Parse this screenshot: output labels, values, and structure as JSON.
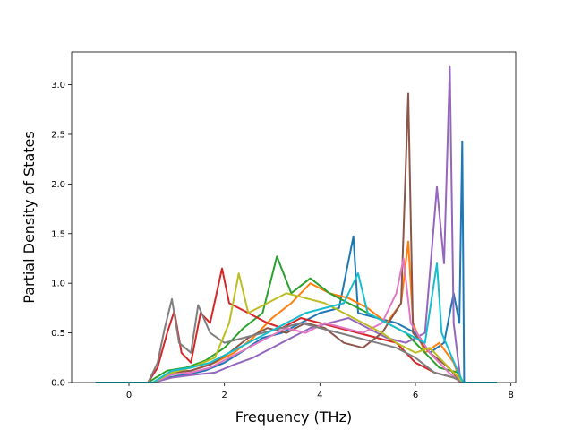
{
  "chart_data": {
    "type": "line",
    "title": "",
    "xlabel": "Frequency (THz)",
    "ylabel": "Partial Density of States",
    "xlim": [
      -1.2,
      8.1
    ],
    "ylim": [
      0.0,
      3.33
    ],
    "x_ticks": [
      0,
      2,
      4,
      6,
      8
    ],
    "x_tick_labels": [
      "0",
      "2",
      "4",
      "6",
      "8"
    ],
    "y_ticks": [
      0.0,
      0.5,
      1.0,
      1.5,
      2.0,
      2.5,
      3.0
    ],
    "y_tick_labels": [
      "0.0",
      "0.5",
      "1.0",
      "1.5",
      "2.0",
      "2.5",
      "3.0"
    ],
    "grid": false,
    "legend": "none",
    "series": [
      {
        "color": "#1f77b4",
        "points": [
          [
            -0.7,
            0
          ],
          [
            0.5,
            0
          ],
          [
            0.8,
            0.05
          ],
          [
            1.2,
            0.08
          ],
          [
            1.6,
            0.12
          ],
          [
            2.0,
            0.2
          ],
          [
            2.4,
            0.32
          ],
          [
            2.8,
            0.45
          ],
          [
            3.2,
            0.5
          ],
          [
            3.6,
            0.6
          ],
          [
            4.0,
            0.7
          ],
          [
            4.4,
            0.75
          ],
          [
            4.7,
            1.47
          ],
          [
            4.8,
            0.7
          ],
          [
            5.2,
            0.65
          ],
          [
            5.6,
            0.6
          ],
          [
            6.0,
            0.5
          ],
          [
            6.3,
            0.3
          ],
          [
            6.6,
            0.4
          ],
          [
            6.8,
            0.9
          ],
          [
            6.92,
            0.6
          ],
          [
            6.98,
            2.43
          ],
          [
            7.02,
            0.0
          ],
          [
            7.7,
            0
          ]
        ]
      },
      {
        "color": "#ff7f0e",
        "points": [
          [
            -0.7,
            0
          ],
          [
            0.5,
            0
          ],
          [
            0.9,
            0.1
          ],
          [
            1.3,
            0.12
          ],
          [
            1.8,
            0.2
          ],
          [
            2.2,
            0.3
          ],
          [
            2.6,
            0.45
          ],
          [
            3.0,
            0.65
          ],
          [
            3.4,
            0.8
          ],
          [
            3.8,
            1.0
          ],
          [
            4.2,
            0.9
          ],
          [
            4.6,
            0.85
          ],
          [
            5.0,
            0.75
          ],
          [
            5.4,
            0.6
          ],
          [
            5.7,
            0.8
          ],
          [
            5.85,
            1.42
          ],
          [
            5.95,
            0.6
          ],
          [
            6.2,
            0.3
          ],
          [
            6.5,
            0.4
          ],
          [
            6.8,
            0.2
          ],
          [
            6.95,
            0.0
          ],
          [
            7.7,
            0
          ]
        ]
      },
      {
        "color": "#2ca02c",
        "points": [
          [
            -0.7,
            0
          ],
          [
            0.4,
            0
          ],
          [
            0.8,
            0.12
          ],
          [
            1.2,
            0.15
          ],
          [
            1.6,
            0.22
          ],
          [
            2.0,
            0.35
          ],
          [
            2.4,
            0.55
          ],
          [
            2.8,
            0.7
          ],
          [
            3.1,
            1.27
          ],
          [
            3.4,
            0.9
          ],
          [
            3.8,
            1.05
          ],
          [
            4.2,
            0.9
          ],
          [
            4.6,
            0.8
          ],
          [
            5.0,
            0.7
          ],
          [
            5.4,
            0.6
          ],
          [
            5.8,
            0.5
          ],
          [
            6.2,
            0.3
          ],
          [
            6.5,
            0.15
          ],
          [
            6.9,
            0.1
          ],
          [
            7.0,
            0.0
          ],
          [
            7.7,
            0
          ]
        ]
      },
      {
        "color": "#d62728",
        "points": [
          [
            -0.7,
            0
          ],
          [
            0.4,
            0
          ],
          [
            0.6,
            0.15
          ],
          [
            0.8,
            0.5
          ],
          [
            0.95,
            0.72
          ],
          [
            1.1,
            0.3
          ],
          [
            1.3,
            0.2
          ],
          [
            1.5,
            0.7
          ],
          [
            1.7,
            0.6
          ],
          [
            1.95,
            1.15
          ],
          [
            2.1,
            0.8
          ],
          [
            2.5,
            0.7
          ],
          [
            2.9,
            0.6
          ],
          [
            3.2,
            0.55
          ],
          [
            3.6,
            0.65
          ],
          [
            4.0,
            0.6
          ],
          [
            4.4,
            0.55
          ],
          [
            4.8,
            0.5
          ],
          [
            5.2,
            0.45
          ],
          [
            5.6,
            0.4
          ],
          [
            6.0,
            0.2
          ],
          [
            6.4,
            0.1
          ],
          [
            6.8,
            0.05
          ],
          [
            7.0,
            0.0
          ],
          [
            7.7,
            0
          ]
        ]
      },
      {
        "color": "#9467bd",
        "points": [
          [
            -0.7,
            0
          ],
          [
            0.5,
            0
          ],
          [
            0.9,
            0.05
          ],
          [
            1.4,
            0.08
          ],
          [
            1.8,
            0.1
          ],
          [
            2.2,
            0.18
          ],
          [
            2.6,
            0.25
          ],
          [
            3.0,
            0.35
          ],
          [
            3.4,
            0.45
          ],
          [
            3.8,
            0.55
          ],
          [
            4.2,
            0.6
          ],
          [
            4.6,
            0.65
          ],
          [
            5.0,
            0.55
          ],
          [
            5.4,
            0.45
          ],
          [
            5.8,
            0.4
          ],
          [
            6.2,
            0.5
          ],
          [
            6.45,
            1.97
          ],
          [
            6.6,
            1.2
          ],
          [
            6.72,
            3.18
          ],
          [
            6.8,
            0.6
          ],
          [
            6.95,
            0.0
          ],
          [
            7.7,
            0
          ]
        ]
      },
      {
        "color": "#8c564b",
        "points": [
          [
            -0.7,
            0
          ],
          [
            0.5,
            0
          ],
          [
            0.9,
            0.1
          ],
          [
            1.3,
            0.12
          ],
          [
            1.7,
            0.18
          ],
          [
            2.1,
            0.3
          ],
          [
            2.5,
            0.45
          ],
          [
            2.9,
            0.55
          ],
          [
            3.3,
            0.5
          ],
          [
            3.7,
            0.6
          ],
          [
            4.1,
            0.55
          ],
          [
            4.5,
            0.4
          ],
          [
            4.9,
            0.35
          ],
          [
            5.3,
            0.5
          ],
          [
            5.7,
            0.8
          ],
          [
            5.85,
            2.91
          ],
          [
            5.95,
            0.5
          ],
          [
            6.3,
            0.3
          ],
          [
            6.7,
            0.15
          ],
          [
            6.95,
            0.0
          ],
          [
            7.7,
            0
          ]
        ]
      },
      {
        "color": "#e377c2",
        "points": [
          [
            -0.7,
            0
          ],
          [
            0.5,
            0
          ],
          [
            0.9,
            0.08
          ],
          [
            1.3,
            0.1
          ],
          [
            1.7,
            0.15
          ],
          [
            2.1,
            0.25
          ],
          [
            2.5,
            0.35
          ],
          [
            2.9,
            0.45
          ],
          [
            3.3,
            0.55
          ],
          [
            3.7,
            0.5
          ],
          [
            4.1,
            0.6
          ],
          [
            4.5,
            0.55
          ],
          [
            4.9,
            0.5
          ],
          [
            5.3,
            0.6
          ],
          [
            5.6,
            0.9
          ],
          [
            5.75,
            1.25
          ],
          [
            5.9,
            0.6
          ],
          [
            6.3,
            0.3
          ],
          [
            6.7,
            0.1
          ],
          [
            6.95,
            0.0
          ],
          [
            7.7,
            0
          ]
        ]
      },
      {
        "color": "#7f7f7f",
        "points": [
          [
            -0.7,
            0
          ],
          [
            0.4,
            0
          ],
          [
            0.6,
            0.2
          ],
          [
            0.75,
            0.55
          ],
          [
            0.9,
            0.84
          ],
          [
            1.05,
            0.4
          ],
          [
            1.3,
            0.3
          ],
          [
            1.45,
            0.78
          ],
          [
            1.7,
            0.5
          ],
          [
            2.0,
            0.4
          ],
          [
            2.4,
            0.45
          ],
          [
            2.8,
            0.5
          ],
          [
            3.2,
            0.55
          ],
          [
            3.6,
            0.6
          ],
          [
            4.0,
            0.55
          ],
          [
            4.4,
            0.5
          ],
          [
            4.8,
            0.45
          ],
          [
            5.2,
            0.4
          ],
          [
            5.6,
            0.35
          ],
          [
            6.0,
            0.25
          ],
          [
            6.4,
            0.1
          ],
          [
            6.8,
            0.05
          ],
          [
            7.0,
            0.0
          ],
          [
            7.7,
            0
          ]
        ]
      },
      {
        "color": "#bcbd22",
        "points": [
          [
            -0.7,
            0
          ],
          [
            0.5,
            0
          ],
          [
            0.9,
            0.1
          ],
          [
            1.3,
            0.15
          ],
          [
            1.8,
            0.25
          ],
          [
            2.1,
            0.6
          ],
          [
            2.3,
            1.1
          ],
          [
            2.5,
            0.7
          ],
          [
            2.9,
            0.8
          ],
          [
            3.3,
            0.9
          ],
          [
            3.7,
            0.85
          ],
          [
            4.1,
            0.8
          ],
          [
            4.5,
            0.7
          ],
          [
            4.9,
            0.6
          ],
          [
            5.3,
            0.5
          ],
          [
            5.6,
            0.4
          ],
          [
            6.0,
            0.3
          ],
          [
            6.3,
            0.35
          ],
          [
            6.6,
            0.2
          ],
          [
            6.9,
            0.05
          ],
          [
            7.0,
            0.0
          ],
          [
            7.7,
            0
          ]
        ]
      },
      {
        "color": "#17becf",
        "points": [
          [
            -0.7,
            0
          ],
          [
            0.5,
            0
          ],
          [
            0.9,
            0.12
          ],
          [
            1.3,
            0.15
          ],
          [
            1.7,
            0.2
          ],
          [
            2.1,
            0.3
          ],
          [
            2.5,
            0.4
          ],
          [
            2.9,
            0.5
          ],
          [
            3.3,
            0.6
          ],
          [
            3.7,
            0.7
          ],
          [
            4.1,
            0.75
          ],
          [
            4.5,
            0.8
          ],
          [
            4.8,
            1.1
          ],
          [
            5.0,
            0.7
          ],
          [
            5.4,
            0.6
          ],
          [
            5.8,
            0.5
          ],
          [
            6.2,
            0.4
          ],
          [
            6.45,
            1.2
          ],
          [
            6.55,
            0.5
          ],
          [
            6.9,
            0.1
          ],
          [
            7.0,
            0.0
          ],
          [
            7.7,
            0
          ]
        ]
      }
    ]
  }
}
